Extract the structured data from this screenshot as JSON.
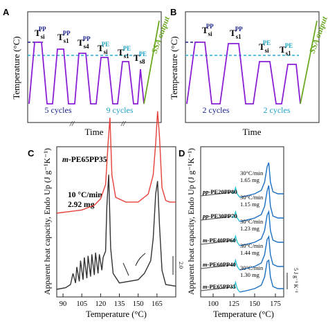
{
  "figure": {
    "panels": {
      "A": {
        "letter": "A",
        "ylabel": "Temperature (°C)",
        "xlabel": "Time",
        "output_label": "SSA output",
        "step_labels": [
          {
            "text": "T",
            "sub": "si",
            "sup": "PP"
          },
          {
            "text": "T",
            "sub": "s1",
            "sup": "PP"
          },
          {
            "text": "T",
            "sub": "s4",
            "sup": "PP"
          },
          {
            "text": "T",
            "sub": "si",
            "sup": "PE"
          },
          {
            "text": "T",
            "sub": "s1",
            "sup": "PE"
          },
          {
            "text": "T",
            "sub": "s8",
            "sup": "PE"
          }
        ],
        "cycle_labels": [
          "5 cycles",
          "9 cycles"
        ],
        "colors": {
          "profile": "#8b1fd6",
          "pp_line": "#1a1f8c",
          "pe_line": "#1fb3d6",
          "output": "#6aa821",
          "pp_text": "#1a1f8c",
          "pe_text": "#1fa3c4"
        }
      },
      "B": {
        "letter": "B",
        "ylabel": "Temperature (°C)",
        "xlabel": "Time",
        "output_label": "SSA output",
        "step_labels": [
          {
            "text": "T",
            "sub": "si",
            "sup": "PP"
          },
          {
            "text": "T",
            "sub": "s1",
            "sup": "PP"
          },
          {
            "text": "T",
            "sub": "si",
            "sup": "PE"
          },
          {
            "text": "T",
            "sub": "s1",
            "sup": "PE"
          }
        ],
        "cycle_labels": [
          "2 cycles",
          "2 cycles"
        ]
      },
      "C": {
        "letter": "C",
        "title": "m-PE65PP35",
        "title_prefix": "m",
        "title_rest": "-PE65PP35",
        "rate": "10 °C/min",
        "mass": "2.92 mg",
        "ylabel": "Apparent heat capacity, Endo Up (J g⁻¹K⁻¹)",
        "xlabel": "Temperature (°C)",
        "scale_label": "2.0",
        "colors": {
          "red": "#e5403a",
          "black": "#333333"
        }
      },
      "D": {
        "letter": "D",
        "ylabel": "Apparent heat capacity, Endo Up (J g⁻¹K⁻¹)",
        "xlabel": "Temperature (°C)",
        "scale_label": "5 J g⁻¹ K⁻¹",
        "samples": [
          {
            "prefix": "pp",
            "name": "-PE20PP80",
            "rate": "30°C/min",
            "mass": "1.65 mg"
          },
          {
            "prefix": "pp",
            "name": "-PE30PP70",
            "rate": "30°C/min",
            "mass": "1.15 mg"
          },
          {
            "prefix": "m",
            "name": "-PE40PP60",
            "rate": "30°C/min",
            "mass": "1.23 mg"
          },
          {
            "prefix": "m",
            "name": "-PE60PP40",
            "rate": "30°C/min",
            "mass": "1.44 mg"
          },
          {
            "prefix": "m",
            "name": "-PE65PP35",
            "rate": "30°C/min",
            "mass": "1.30 mg"
          }
        ],
        "colors": {
          "blue": "#1a6fc4",
          "cyan": "#1fc4d6",
          "gray": "#666666"
        }
      }
    }
  },
  "chart_data": [
    {
      "type": "line",
      "panel": "C",
      "title": "m-PE65PP35",
      "xlabel": "Temperature (°C)",
      "ylabel": "Apparent heat capacity, Endo Up (J g⁻¹K⁻¹)",
      "xlim": [
        85,
        180
      ],
      "xticks": [
        90,
        105,
        120,
        135,
        150,
        165
      ],
      "grid": false,
      "series": [
        {
          "color": "#e5403a",
          "x": [
            85,
            95,
            105,
            115,
            120,
            124,
            126,
            127.5,
            129,
            132,
            140,
            150,
            158,
            162,
            164,
            165.5,
            167,
            169,
            172,
            175,
            180
          ],
          "y": [
            0.0,
            0.05,
            0.1,
            0.25,
            0.45,
            0.9,
            2.2,
            3.0,
            1.2,
            0.5,
            0.35,
            0.35,
            0.6,
            1.2,
            2.2,
            3.2,
            2.4,
            0.8,
            0.4,
            0.35,
            0.35
          ]
        },
        {
          "color": "#333333",
          "x": [
            85,
            92,
            96,
            98,
            100,
            101,
            103,
            104,
            106,
            107,
            109,
            110,
            112,
            113,
            115,
            116,
            118,
            119,
            121,
            122,
            124,
            125,
            126.5,
            128,
            130,
            135,
            150,
            155,
            160,
            162,
            164,
            165.5,
            167,
            169,
            172,
            180
          ],
          "y": [
            0.0,
            0.05,
            0.15,
            0.5,
            0.2,
            0.7,
            0.25,
            0.9,
            0.3,
            1.0,
            0.35,
            1.05,
            0.4,
            1.1,
            0.45,
            1.15,
            0.5,
            1.1,
            0.6,
            1.0,
            1.2,
            2.6,
            3.6,
            1.3,
            0.5,
            0.2,
            0.3,
            0.5,
            0.9,
            1.6,
            3.0,
            3.4,
            2.0,
            0.6,
            0.15,
            0.1
          ]
        }
      ]
    },
    {
      "type": "line",
      "panel": "D",
      "xlabel": "Temperature (°C)",
      "ylabel": "Apparent heat capacity, Endo Up (J g⁻¹K⁻¹)",
      "xlim": [
        85,
        185
      ],
      "xticks": [
        75,
        100,
        125,
        150,
        175
      ],
      "grid": false,
      "series_names": [
        "pp-PE20PP80",
        "pp-PE30PP70",
        "m-PE40PP60",
        "m-PE60PP40",
        "m-PE65PP35"
      ]
    }
  ]
}
